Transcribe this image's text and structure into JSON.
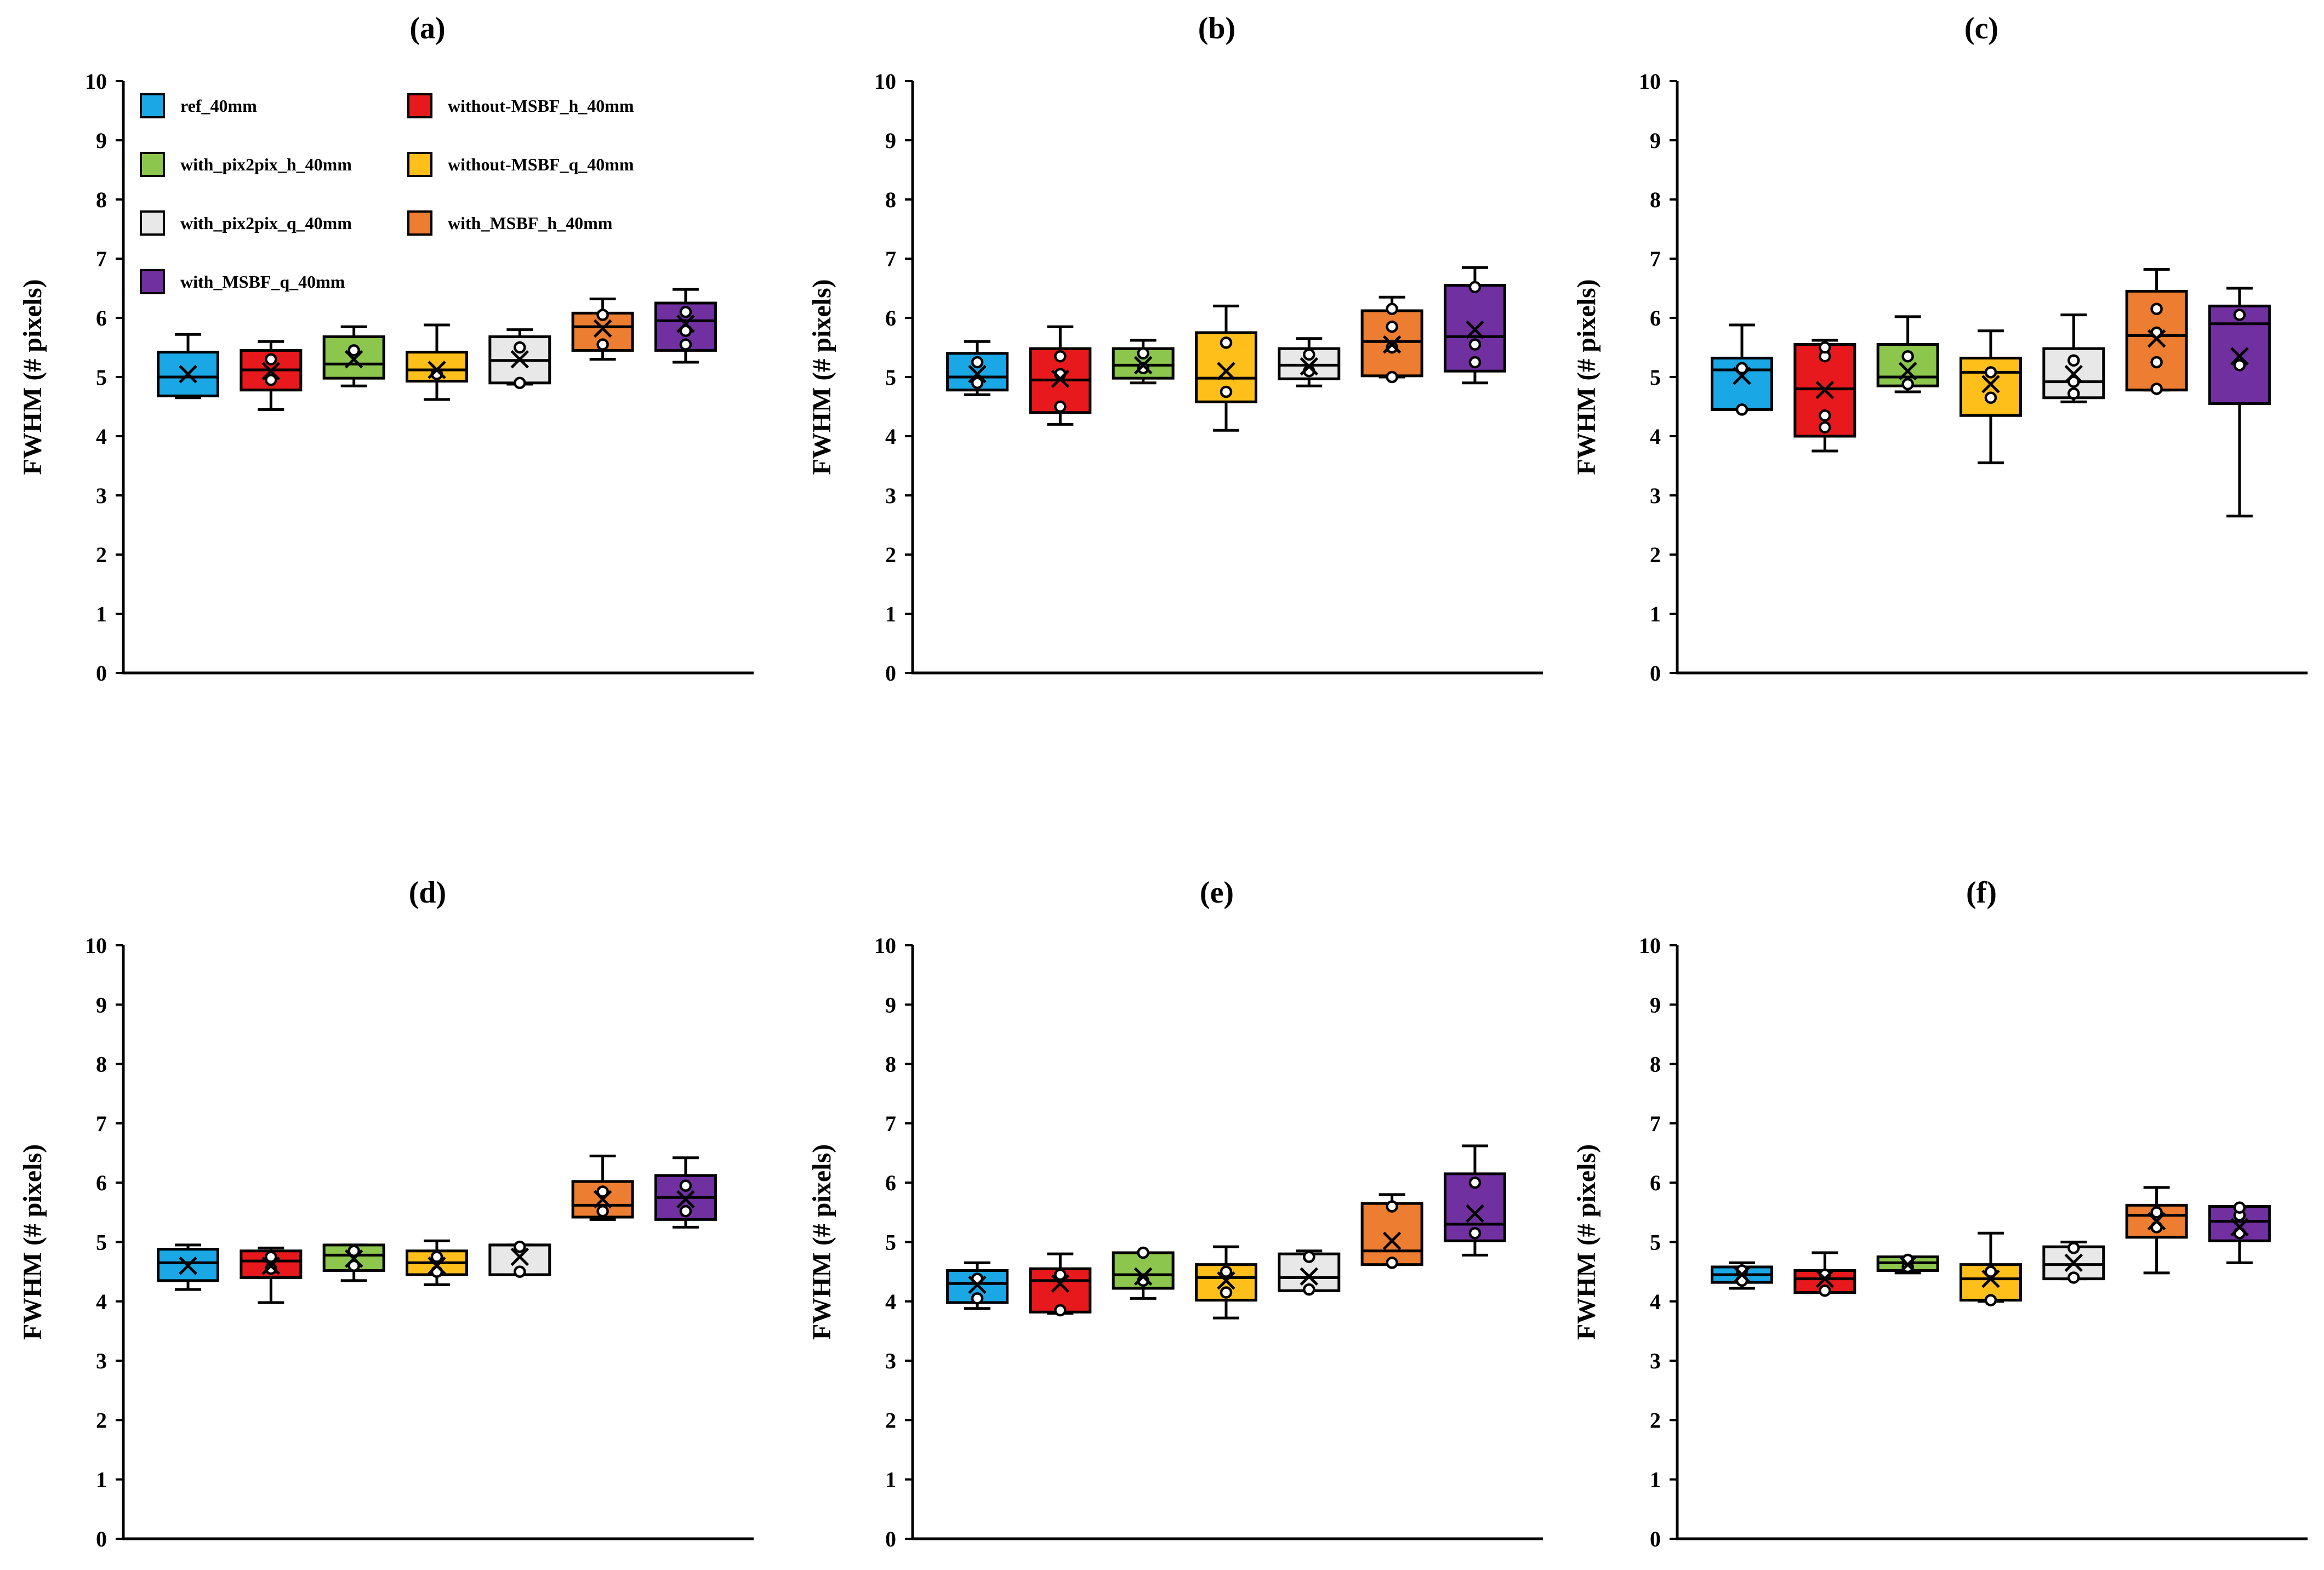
{
  "chart_data": {
    "type": "box",
    "ylabel": "FWHM (# pixels)",
    "ylim": [
      0,
      10
    ],
    "yticks": [
      0,
      1,
      2,
      3,
      4,
      5,
      6,
      7,
      8,
      9,
      10
    ],
    "legend_position": "top-left of panel (a)",
    "series": [
      {
        "name": "ref_40mm",
        "color": "#1aa7e6"
      },
      {
        "name": "without-MSBF_h_40mm",
        "color": "#e8191c"
      },
      {
        "name": "with_pix2pix_h_40mm",
        "color": "#8cc64c"
      },
      {
        "name": "without-MSBF_q_40mm",
        "color": "#ffbf1a"
      },
      {
        "name": "with_pix2pix_q_40mm",
        "color": "#e8e8e8"
      },
      {
        "name": "with_MSBF_h_40mm",
        "color": "#ed7d31"
      },
      {
        "name": "with_MSBF_q_40mm",
        "color": "#7030a0"
      }
    ],
    "panels": [
      {
        "title": "(a)",
        "boxes": [
          {
            "min": 4.65,
            "q1": 4.68,
            "median": 5.0,
            "q3": 5.42,
            "max": 5.72,
            "mean": 5.05,
            "points": []
          },
          {
            "min": 4.45,
            "q1": 4.78,
            "median": 5.12,
            "q3": 5.45,
            "max": 5.6,
            "mean": 5.1,
            "points": [
              4.95,
              5.3
            ]
          },
          {
            "min": 4.85,
            "q1": 4.98,
            "median": 5.22,
            "q3": 5.68,
            "max": 5.85,
            "mean": 5.3,
            "points": [
              5.45
            ]
          },
          {
            "min": 4.62,
            "q1": 4.93,
            "median": 5.12,
            "q3": 5.42,
            "max": 5.88,
            "mean": 5.12,
            "points": [
              5.05
            ]
          },
          {
            "min": 4.88,
            "q1": 4.9,
            "median": 5.28,
            "q3": 5.68,
            "max": 5.8,
            "mean": 5.3,
            "points": [
              4.9,
              5.5
            ]
          },
          {
            "min": 5.3,
            "q1": 5.45,
            "median": 5.85,
            "q3": 6.08,
            "max": 6.32,
            "mean": 5.82,
            "points": [
              5.55,
              6.05
            ]
          },
          {
            "min": 5.25,
            "q1": 5.45,
            "median": 5.95,
            "q3": 6.25,
            "max": 6.48,
            "mean": 5.9,
            "points": [
              5.55,
              5.78,
              6.1
            ]
          }
        ]
      },
      {
        "title": "(b)",
        "boxes": [
          {
            "min": 4.7,
            "q1": 4.78,
            "median": 5.0,
            "q3": 5.4,
            "max": 5.6,
            "mean": 5.05,
            "points": [
              4.9,
              5.25
            ]
          },
          {
            "min": 4.2,
            "q1": 4.4,
            "median": 4.95,
            "q3": 5.48,
            "max": 5.85,
            "mean": 4.97,
            "points": [
              4.5,
              5.05,
              5.35
            ]
          },
          {
            "min": 4.9,
            "q1": 4.98,
            "median": 5.2,
            "q3": 5.48,
            "max": 5.62,
            "mean": 5.2,
            "points": [
              5.15,
              5.4
            ]
          },
          {
            "min": 4.1,
            "q1": 4.58,
            "median": 4.98,
            "q3": 5.75,
            "max": 6.2,
            "mean": 5.1,
            "points": [
              4.75,
              5.58
            ]
          },
          {
            "min": 4.85,
            "q1": 4.97,
            "median": 5.2,
            "q3": 5.48,
            "max": 5.65,
            "mean": 5.18,
            "points": [
              5.1,
              5.38
            ]
          },
          {
            "min": 5.0,
            "q1": 5.02,
            "median": 5.6,
            "q3": 6.12,
            "max": 6.35,
            "mean": 5.55,
            "points": [
              5.0,
              5.5,
              5.85,
              6.15
            ]
          },
          {
            "min": 4.9,
            "q1": 5.1,
            "median": 5.68,
            "q3": 6.55,
            "max": 6.85,
            "mean": 5.8,
            "points": [
              5.25,
              5.55,
              6.52
            ]
          }
        ]
      },
      {
        "title": "(c)",
        "boxes": [
          {
            "min": 4.45,
            "q1": 4.45,
            "median": 5.12,
            "q3": 5.32,
            "max": 5.88,
            "mean": 5.02,
            "points": [
              4.45,
              5.15
            ]
          },
          {
            "min": 3.75,
            "q1": 4.0,
            "median": 4.8,
            "q3": 5.55,
            "max": 5.62,
            "mean": 4.78,
            "points": [
              4.15,
              4.35,
              5.35,
              5.5
            ]
          },
          {
            "min": 4.75,
            "q1": 4.85,
            "median": 5.0,
            "q3": 5.55,
            "max": 6.02,
            "mean": 5.1,
            "points": [
              4.88,
              5.35
            ]
          },
          {
            "min": 3.55,
            "q1": 4.35,
            "median": 5.08,
            "q3": 5.32,
            "max": 5.78,
            "mean": 4.88,
            "points": [
              4.65,
              5.08
            ]
          },
          {
            "min": 4.58,
            "q1": 4.65,
            "median": 4.92,
            "q3": 5.48,
            "max": 6.05,
            "mean": 5.05,
            "points": [
              4.72,
              4.92,
              5.28
            ]
          },
          {
            "min": 4.78,
            "q1": 4.78,
            "median": 5.7,
            "q3": 6.45,
            "max": 6.82,
            "mean": 5.65,
            "points": [
              4.8,
              5.25,
              5.75,
              6.15
            ]
          },
          {
            "min": 2.65,
            "q1": 4.55,
            "median": 5.9,
            "q3": 6.2,
            "max": 6.5,
            "mean": 5.35,
            "points": [
              5.2,
              6.05
            ]
          }
        ]
      },
      {
        "title": "(d)",
        "boxes": [
          {
            "min": 4.2,
            "q1": 4.35,
            "median": 4.65,
            "q3": 4.88,
            "max": 4.95,
            "mean": 4.6,
            "points": []
          },
          {
            "min": 3.98,
            "q1": 4.4,
            "median": 4.68,
            "q3": 4.85,
            "max": 4.9,
            "mean": 4.6,
            "points": [
              4.55,
              4.75
            ]
          },
          {
            "min": 4.35,
            "q1": 4.52,
            "median": 4.78,
            "q3": 4.95,
            "max": 4.95,
            "mean": 4.72,
            "points": [
              4.6,
              4.85
            ]
          },
          {
            "min": 4.28,
            "q1": 4.45,
            "median": 4.65,
            "q3": 4.85,
            "max": 5.02,
            "mean": 4.6,
            "points": [
              4.5,
              4.75
            ]
          },
          {
            "min": 4.45,
            "q1": 4.45,
            "median": 4.95,
            "q3": 4.95,
            "max": 4.95,
            "mean": 4.75,
            "points": [
              4.5,
              4.92
            ]
          },
          {
            "min": 5.38,
            "q1": 5.42,
            "median": 5.62,
            "q3": 6.02,
            "max": 6.45,
            "mean": 5.72,
            "points": [
              5.52,
              5.85
            ]
          },
          {
            "min": 5.25,
            "q1": 5.38,
            "median": 5.75,
            "q3": 6.12,
            "max": 6.42,
            "mean": 5.72,
            "points": [
              5.52,
              5.95
            ]
          }
        ]
      },
      {
        "title": "(e)",
        "boxes": [
          {
            "min": 3.88,
            "q1": 3.98,
            "median": 4.3,
            "q3": 4.52,
            "max": 4.65,
            "mean": 4.28,
            "points": [
              4.05,
              4.38
            ]
          },
          {
            "min": 3.8,
            "q1": 3.82,
            "median": 4.35,
            "q3": 4.55,
            "max": 4.8,
            "mean": 4.3,
            "points": [
              3.85,
              4.45
            ]
          },
          {
            "min": 4.05,
            "q1": 4.22,
            "median": 4.45,
            "q3": 4.82,
            "max": 4.82,
            "mean": 4.42,
            "points": [
              4.35,
              4.82
            ]
          },
          {
            "min": 3.72,
            "q1": 4.02,
            "median": 4.4,
            "q3": 4.62,
            "max": 4.92,
            "mean": 4.35,
            "points": [
              4.15,
              4.5
            ]
          },
          {
            "min": 4.18,
            "q1": 4.18,
            "median": 4.4,
            "q3": 4.8,
            "max": 4.85,
            "mean": 4.42,
            "points": [
              4.2,
              4.75
            ]
          },
          {
            "min": 4.62,
            "q1": 4.62,
            "median": 4.85,
            "q3": 5.65,
            "max": 5.8,
            "mean": 5.02,
            "points": [
              4.65,
              5.6
            ]
          },
          {
            "min": 4.78,
            "q1": 5.02,
            "median": 5.3,
            "q3": 6.15,
            "max": 6.62,
            "mean": 5.48,
            "points": [
              5.15,
              6.0
            ]
          }
        ]
      },
      {
        "title": "(f)",
        "boxes": [
          {
            "min": 4.22,
            "q1": 4.32,
            "median": 4.45,
            "q3": 4.58,
            "max": 4.65,
            "mean": 4.45,
            "points": [
              4.35,
              4.52
            ]
          },
          {
            "min": 4.15,
            "q1": 4.15,
            "median": 4.38,
            "q3": 4.52,
            "max": 4.82,
            "mean": 4.38,
            "points": [
              4.18,
              4.45
            ]
          },
          {
            "min": 4.48,
            "q1": 4.52,
            "median": 4.65,
            "q3": 4.75,
            "max": 4.75,
            "mean": 4.62,
            "points": [
              4.58,
              4.7
            ]
          },
          {
            "min": 4.0,
            "q1": 4.02,
            "median": 4.38,
            "q3": 4.62,
            "max": 5.15,
            "mean": 4.38,
            "points": [
              4.02,
              4.5
            ]
          },
          {
            "min": 4.38,
            "q1": 4.38,
            "median": 4.62,
            "q3": 4.92,
            "max": 5.0,
            "mean": 4.65,
            "points": [
              4.4,
              4.9
            ]
          },
          {
            "min": 4.48,
            "q1": 5.08,
            "median": 5.45,
            "q3": 5.62,
            "max": 5.92,
            "mean": 5.35,
            "points": [
              5.25,
              5.5
            ]
          },
          {
            "min": 4.65,
            "q1": 5.02,
            "median": 5.35,
            "q3": 5.6,
            "max": 5.6,
            "mean": 5.25,
            "points": [
              5.15,
              5.45,
              5.58
            ]
          }
        ]
      }
    ]
  }
}
